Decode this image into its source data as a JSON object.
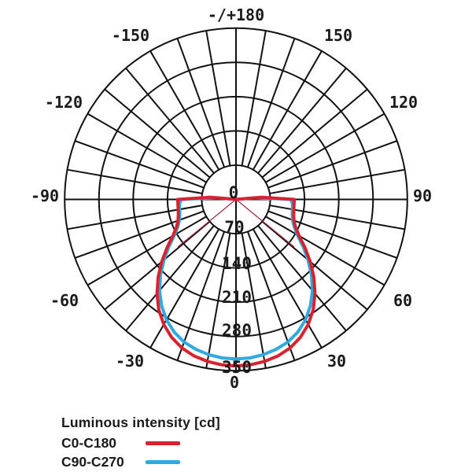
{
  "chart_data": {
    "type": "polar",
    "title": "Luminous intensity [cd]",
    "units": "cd",
    "r_max": 350,
    "rings": [
      70,
      140,
      210,
      280,
      350
    ],
    "grid": {
      "spoke_step_deg": 10,
      "line_color": "#111111",
      "text_color": "#1a1a1a"
    },
    "angle_labels": [
      {
        "angle": 180,
        "text": "-/+180"
      },
      {
        "angle": -150,
        "text": "-150"
      },
      {
        "angle": 150,
        "text": "150"
      },
      {
        "angle": -120,
        "text": "-120"
      },
      {
        "angle": 120,
        "text": "120"
      },
      {
        "angle": -90,
        "text": "-90"
      },
      {
        "angle": 90,
        "text": "90"
      },
      {
        "angle": -60,
        "text": "-60"
      },
      {
        "angle": 60,
        "text": "60"
      },
      {
        "angle": -30,
        "text": "-30"
      },
      {
        "angle": 30,
        "text": "30"
      },
      {
        "angle": 0,
        "text": "0"
      }
    ],
    "radial_ticks": [
      {
        "value": 0,
        "text": "0"
      },
      {
        "value": 70,
        "text": "70"
      },
      {
        "value": 140,
        "text": "140"
      },
      {
        "value": 210,
        "text": "210"
      },
      {
        "value": 280,
        "text": "280"
      },
      {
        "value": 350,
        "text": "350"
      }
    ],
    "gamma_deg": [
      0,
      5,
      10,
      15,
      20,
      25,
      30,
      35,
      40,
      45,
      50,
      55,
      60,
      65,
      70,
      75,
      80,
      85,
      90,
      95,
      100
    ],
    "series": [
      {
        "name": "C0-C180",
        "color": "#d8232e",
        "values": [
          340,
          339,
          336,
          331,
          323,
          311,
          295,
          275,
          251,
          225,
          198,
          172,
          149,
          134,
          126,
          122,
          120,
          119,
          119,
          52,
          0
        ]
      },
      {
        "name": "C90-C270",
        "color": "#2fa9e0",
        "values": [
          326,
          325,
          322,
          317,
          310,
          299,
          284,
          265,
          243,
          218,
          192,
          167,
          145,
          131,
          123,
          119,
          117,
          116,
          112,
          38,
          0
        ]
      }
    ],
    "legend": {
      "title": "Luminous intensity [cd]",
      "entries": [
        {
          "label": "C0-C180",
          "color": "#d8232e"
        },
        {
          "label": "C90-C270",
          "color": "#2fa9e0"
        }
      ]
    }
  }
}
